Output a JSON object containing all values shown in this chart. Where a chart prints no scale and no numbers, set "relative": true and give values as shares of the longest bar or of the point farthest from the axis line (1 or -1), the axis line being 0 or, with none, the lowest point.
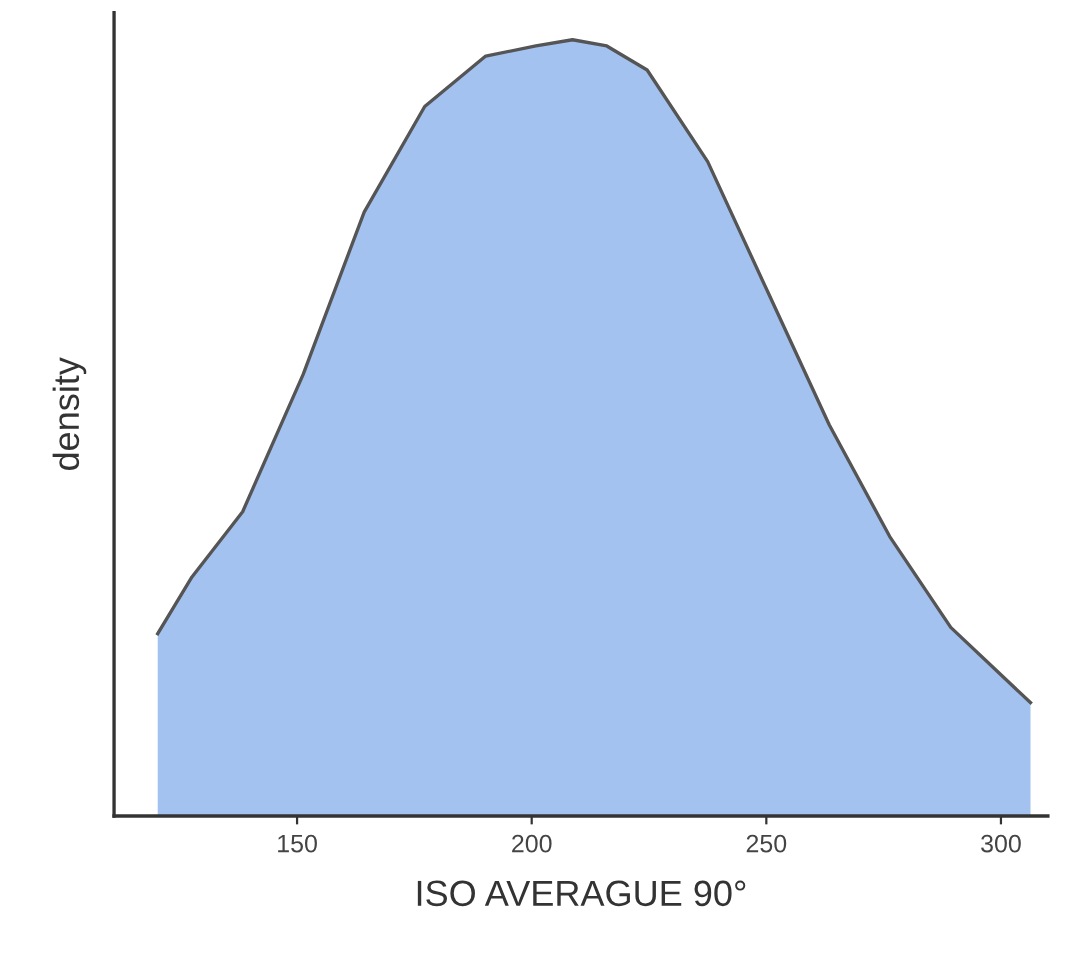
{
  "chart_data": {
    "type": "area",
    "relative": true,
    "xlabel": "ISO AVERAGUE 90°",
    "ylabel": "density",
    "xlim": [
      111,
      310
    ],
    "xticks": [
      150,
      200,
      250,
      300
    ],
    "grid": false,
    "legend": false,
    "series": [
      {
        "color": "#a4c2f0",
        "x": [
          120.3,
          127.6,
          138.4,
          151.3,
          164.3,
          177.2,
          190.2,
          200.9,
          208.7,
          216.0,
          224.6,
          237.5,
          250.4,
          263.4,
          276.3,
          289.3,
          306.3
        ],
        "values": [
          0.235,
          0.308,
          0.392,
          0.569,
          0.778,
          0.914,
          0.979,
          0.992,
          1.0,
          0.992,
          0.961,
          0.843,
          0.674,
          0.504,
          0.36,
          0.243,
          0.146
        ]
      }
    ]
  }
}
